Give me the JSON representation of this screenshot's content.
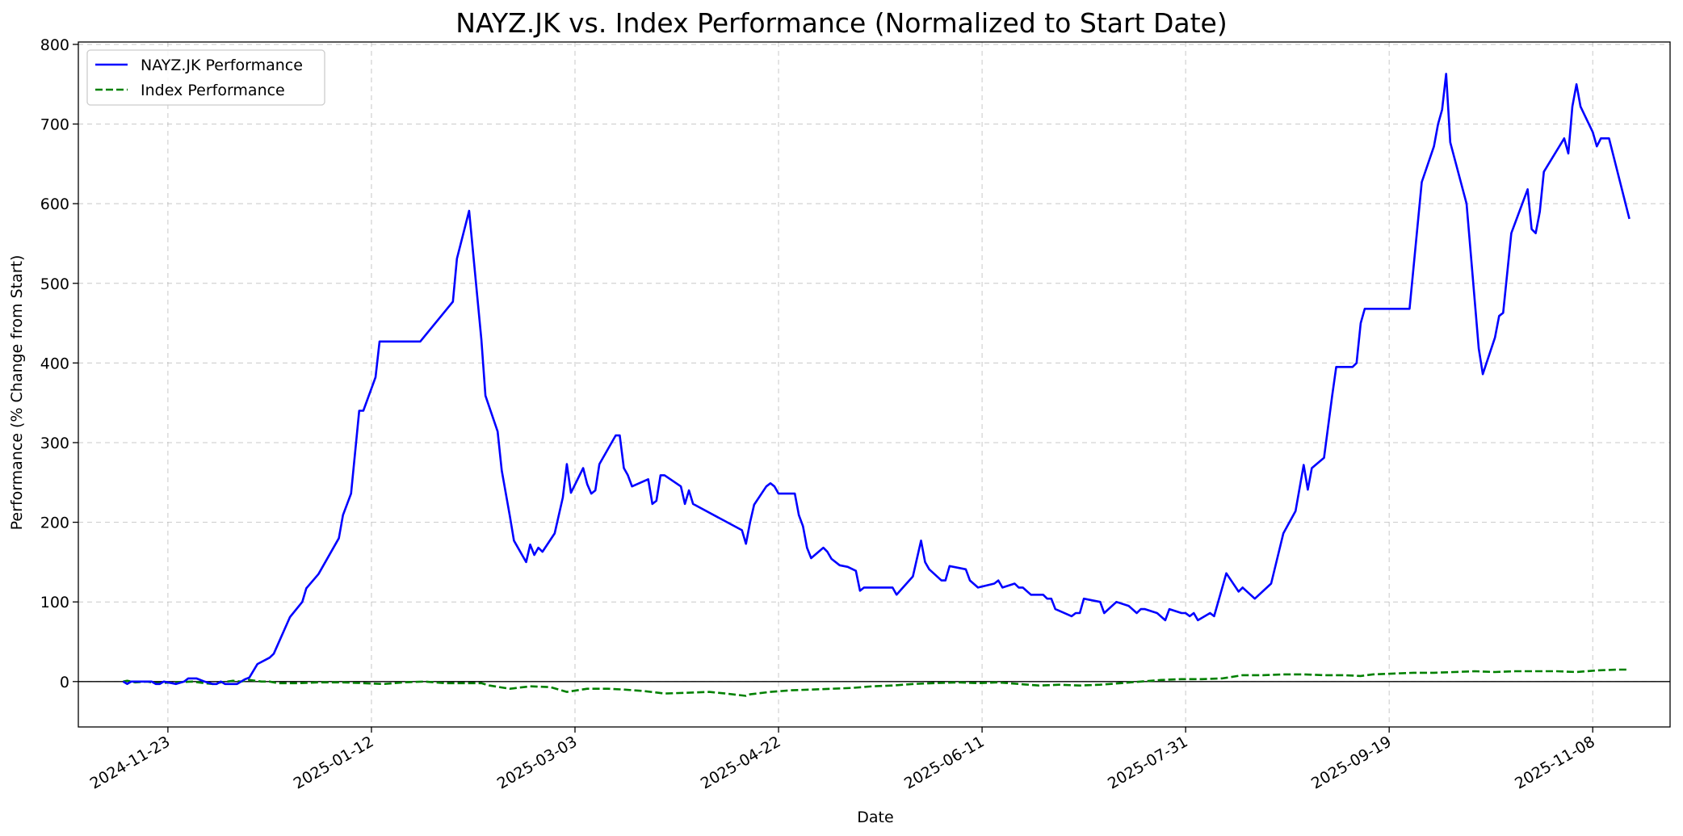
{
  "chart_data": {
    "type": "line",
    "title": "NAYZ.JK vs. Index Performance (Normalized to Start Date)",
    "xlabel": "Date",
    "ylabel": "Performance (% Change from Start)",
    "x_ticks": [
      "2024-11-23",
      "2025-01-12",
      "2025-03-03",
      "2025-04-22",
      "2025-06-11",
      "2025-07-31",
      "2025-09-19",
      "2025-11-08"
    ],
    "y_ticks": [
      0,
      100,
      200,
      300,
      400,
      500,
      600,
      700,
      800
    ],
    "ylim": [
      -57,
      803
    ],
    "xlim": [
      "2024-11-01",
      "2025-11-27"
    ],
    "grid": true,
    "zero_line": true,
    "legend": "top-left",
    "colors": {
      "nayz": "#0000ff",
      "index": "#008000",
      "zero": "#000000",
      "grid": "#b0b0b0"
    },
    "series": [
      {
        "name": "NAYZ.JK Performance",
        "style": "solid",
        "points": [
          [
            "2024-11-12",
            0
          ],
          [
            "2024-11-13",
            -3
          ],
          [
            "2024-11-14",
            0
          ],
          [
            "2024-11-15",
            0
          ],
          [
            "2024-11-18",
            0
          ],
          [
            "2024-11-19",
            0
          ],
          [
            "2024-11-20",
            -3
          ],
          [
            "2024-11-21",
            -3
          ],
          [
            "2024-11-22",
            0
          ],
          [
            "2024-11-25",
            -3
          ],
          [
            "2024-11-27",
            0
          ],
          [
            "2024-11-28",
            4
          ],
          [
            "2024-11-30",
            4
          ],
          [
            "2024-12-02",
            0
          ],
          [
            "2024-12-04",
            -3
          ],
          [
            "2024-12-05",
            -3
          ],
          [
            "2024-12-06",
            0
          ],
          [
            "2024-12-07",
            -3
          ],
          [
            "2024-12-10",
            -3
          ],
          [
            "2024-12-11",
            0
          ],
          [
            "2024-12-12",
            3
          ],
          [
            "2024-12-13",
            5
          ],
          [
            "2024-12-15",
            22
          ],
          [
            "2024-12-18",
            30
          ],
          [
            "2024-12-19",
            35
          ],
          [
            "2024-12-23",
            81
          ],
          [
            "2024-12-26",
            100
          ],
          [
            "2024-12-27",
            117
          ],
          [
            "2024-12-30",
            135
          ],
          [
            "2025-01-04",
            180
          ],
          [
            "2025-01-05",
            209
          ],
          [
            "2025-01-07",
            236
          ],
          [
            "2025-01-09",
            340
          ],
          [
            "2025-01-10",
            340
          ],
          [
            "2025-01-13",
            382
          ],
          [
            "2025-01-14",
            427
          ],
          [
            "2025-01-24",
            427
          ],
          [
            "2025-02-01",
            477
          ],
          [
            "2025-02-02",
            531
          ],
          [
            "2025-02-05",
            591
          ],
          [
            "2025-02-08",
            429
          ],
          [
            "2025-02-09",
            359
          ],
          [
            "2025-02-12",
            314
          ],
          [
            "2025-02-13",
            265
          ],
          [
            "2025-02-15",
            208
          ],
          [
            "2025-02-16",
            177
          ],
          [
            "2025-02-19",
            150
          ],
          [
            "2025-02-20",
            172
          ],
          [
            "2025-02-21",
            159
          ],
          [
            "2025-02-22",
            168
          ],
          [
            "2025-02-23",
            163
          ],
          [
            "2025-02-26",
            186
          ],
          [
            "2025-02-28",
            231
          ],
          [
            "2025-03-01",
            273
          ],
          [
            "2025-03-02",
            237
          ],
          [
            "2025-03-05",
            268
          ],
          [
            "2025-03-06",
            248
          ],
          [
            "2025-03-07",
            236
          ],
          [
            "2025-03-08",
            240
          ],
          [
            "2025-03-09",
            273
          ],
          [
            "2025-03-13",
            309
          ],
          [
            "2025-03-14",
            309
          ],
          [
            "2025-03-15",
            268
          ],
          [
            "2025-03-16",
            259
          ],
          [
            "2025-03-17",
            245
          ],
          [
            "2025-03-21",
            254
          ],
          [
            "2025-03-22",
            223
          ],
          [
            "2025-03-23",
            227
          ],
          [
            "2025-03-24",
            259
          ],
          [
            "2025-03-25",
            259
          ],
          [
            "2025-03-29",
            245
          ],
          [
            "2025-03-30",
            223
          ],
          [
            "2025-03-31",
            240
          ],
          [
            "2025-04-01",
            223
          ],
          [
            "2025-04-13",
            190
          ],
          [
            "2025-04-14",
            173
          ],
          [
            "2025-04-15",
            200
          ],
          [
            "2025-04-16",
            222
          ],
          [
            "2025-04-19",
            245
          ],
          [
            "2025-04-20",
            249
          ],
          [
            "2025-04-21",
            245
          ],
          [
            "2025-04-22",
            236
          ],
          [
            "2025-04-26",
            236
          ],
          [
            "2025-04-27",
            209
          ],
          [
            "2025-04-28",
            195
          ],
          [
            "2025-04-29",
            168
          ],
          [
            "2025-04-30",
            155
          ],
          [
            "2025-05-03",
            168
          ],
          [
            "2025-05-04",
            163
          ],
          [
            "2025-05-05",
            154
          ],
          [
            "2025-05-07",
            146
          ],
          [
            "2025-05-09",
            144
          ],
          [
            "2025-05-11",
            139
          ],
          [
            "2025-05-12",
            114
          ],
          [
            "2025-05-13",
            118
          ],
          [
            "2025-05-20",
            118
          ],
          [
            "2025-05-21",
            109
          ],
          [
            "2025-05-25",
            132
          ],
          [
            "2025-05-27",
            177
          ],
          [
            "2025-05-28",
            150
          ],
          [
            "2025-05-29",
            141
          ],
          [
            "2025-06-01",
            127
          ],
          [
            "2025-06-02",
            127
          ],
          [
            "2025-06-03",
            145
          ],
          [
            "2025-06-07",
            141
          ],
          [
            "2025-06-08",
            127
          ],
          [
            "2025-06-10",
            118
          ],
          [
            "2025-06-14",
            123
          ],
          [
            "2025-06-15",
            127
          ],
          [
            "2025-06-16",
            118
          ],
          [
            "2025-06-19",
            123
          ],
          [
            "2025-06-20",
            118
          ],
          [
            "2025-06-21",
            118
          ],
          [
            "2025-06-23",
            109
          ],
          [
            "2025-06-26",
            109
          ],
          [
            "2025-06-27",
            104
          ],
          [
            "2025-06-28",
            104
          ],
          [
            "2025-06-29",
            91
          ],
          [
            "2025-07-03",
            82
          ],
          [
            "2025-07-04",
            86
          ],
          [
            "2025-07-05",
            86
          ],
          [
            "2025-07-06",
            104
          ],
          [
            "2025-07-10",
            100
          ],
          [
            "2025-07-11",
            86
          ],
          [
            "2025-07-14",
            100
          ],
          [
            "2025-07-17",
            95
          ],
          [
            "2025-07-19",
            86
          ],
          [
            "2025-07-20",
            91
          ],
          [
            "2025-07-21",
            91
          ],
          [
            "2025-07-24",
            86
          ],
          [
            "2025-07-26",
            77
          ],
          [
            "2025-07-27",
            91
          ],
          [
            "2025-07-30",
            86
          ],
          [
            "2025-07-31",
            86
          ],
          [
            "2025-08-01",
            82
          ],
          [
            "2025-08-02",
            86
          ],
          [
            "2025-08-03",
            77
          ],
          [
            "2025-08-06",
            86
          ],
          [
            "2025-08-07",
            82
          ],
          [
            "2025-08-10",
            136
          ],
          [
            "2025-08-13",
            113
          ],
          [
            "2025-08-14",
            118
          ],
          [
            "2025-08-17",
            104
          ],
          [
            "2025-08-21",
            123
          ],
          [
            "2025-08-24",
            186
          ],
          [
            "2025-08-27",
            214
          ],
          [
            "2025-08-29",
            272
          ],
          [
            "2025-08-30",
            241
          ],
          [
            "2025-08-31",
            268
          ],
          [
            "2025-09-03",
            281
          ],
          [
            "2025-09-05",
            359
          ],
          [
            "2025-09-06",
            395
          ],
          [
            "2025-09-10",
            395
          ],
          [
            "2025-09-11",
            400
          ],
          [
            "2025-09-12",
            450
          ],
          [
            "2025-09-13",
            468
          ],
          [
            "2025-09-24",
            468
          ],
          [
            "2025-09-27",
            627
          ],
          [
            "2025-09-30",
            672
          ],
          [
            "2025-10-01",
            700
          ],
          [
            "2025-10-02",
            718
          ],
          [
            "2025-10-03",
            763
          ],
          [
            "2025-10-04",
            677
          ],
          [
            "2025-10-08",
            600
          ],
          [
            "2025-10-11",
            418
          ],
          [
            "2025-10-12",
            386
          ],
          [
            "2025-10-15",
            432
          ],
          [
            "2025-10-16",
            459
          ],
          [
            "2025-10-17",
            463
          ],
          [
            "2025-10-19",
            563
          ],
          [
            "2025-10-23",
            618
          ],
          [
            "2025-10-24",
            568
          ],
          [
            "2025-10-25",
            563
          ],
          [
            "2025-10-26",
            590
          ],
          [
            "2025-10-27",
            640
          ],
          [
            "2025-11-01",
            682
          ],
          [
            "2025-11-02",
            663
          ],
          [
            "2025-11-03",
            722
          ],
          [
            "2025-11-04",
            750
          ],
          [
            "2025-11-05",
            722
          ],
          [
            "2025-11-08",
            690
          ],
          [
            "2025-11-09",
            672
          ],
          [
            "2025-11-10",
            682
          ],
          [
            "2025-11-12",
            682
          ],
          [
            "2025-11-17",
            581
          ]
        ]
      },
      {
        "name": "Index Performance",
        "style": "dashed",
        "points": [
          [
            "2024-11-12",
            0
          ],
          [
            "2024-11-13",
            1
          ],
          [
            "2024-11-15",
            -1
          ],
          [
            "2024-11-18",
            0
          ],
          [
            "2024-11-20",
            -2
          ],
          [
            "2024-11-25",
            -1
          ],
          [
            "2024-11-29",
            0
          ],
          [
            "2024-12-02",
            -2
          ],
          [
            "2024-12-04",
            -3
          ],
          [
            "2024-12-06",
            -1
          ],
          [
            "2024-12-09",
            1
          ],
          [
            "2024-12-11",
            0
          ],
          [
            "2024-12-13",
            2
          ],
          [
            "2024-12-16",
            0
          ],
          [
            "2024-12-18",
            0
          ],
          [
            "2024-12-20",
            -2
          ],
          [
            "2024-12-25",
            -2
          ],
          [
            "2024-12-30",
            -1
          ],
          [
            "2025-01-05",
            -1
          ],
          [
            "2025-01-10",
            -2
          ],
          [
            "2025-01-15",
            -3
          ],
          [
            "2025-01-20",
            -1
          ],
          [
            "2025-01-25",
            0
          ],
          [
            "2025-01-30",
            -2
          ],
          [
            "2025-02-05",
            -2
          ],
          [
            "2025-02-08",
            -2
          ],
          [
            "2025-02-10",
            -5
          ],
          [
            "2025-02-15",
            -9
          ],
          [
            "2025-02-20",
            -6
          ],
          [
            "2025-02-25",
            -7
          ],
          [
            "2025-03-01",
            -13
          ],
          [
            "2025-03-06",
            -9
          ],
          [
            "2025-03-11",
            -9
          ],
          [
            "2025-03-15",
            -10
          ],
          [
            "2025-03-20",
            -12
          ],
          [
            "2025-03-25",
            -15
          ],
          [
            "2025-03-31",
            -14
          ],
          [
            "2025-04-05",
            -13
          ],
          [
            "2025-04-09",
            -15
          ],
          [
            "2025-04-14",
            -18
          ],
          [
            "2025-04-15",
            -16
          ],
          [
            "2025-04-20",
            -13
          ],
          [
            "2025-04-25",
            -11
          ],
          [
            "2025-04-30",
            -10
          ],
          [
            "2025-05-05",
            -9
          ],
          [
            "2025-05-10",
            -8
          ],
          [
            "2025-05-15",
            -6
          ],
          [
            "2025-05-20",
            -5
          ],
          [
            "2025-05-25",
            -3
          ],
          [
            "2025-05-30",
            -2
          ],
          [
            "2025-06-05",
            -1
          ],
          [
            "2025-06-10",
            -2
          ],
          [
            "2025-06-15",
            -1
          ],
          [
            "2025-06-20",
            -3
          ],
          [
            "2025-06-25",
            -5
          ],
          [
            "2025-06-30",
            -4
          ],
          [
            "2025-07-05",
            -5
          ],
          [
            "2025-07-10",
            -4
          ],
          [
            "2025-07-15",
            -2
          ],
          [
            "2025-07-20",
            0
          ],
          [
            "2025-07-25",
            2
          ],
          [
            "2025-07-30",
            3
          ],
          [
            "2025-08-04",
            3
          ],
          [
            "2025-08-09",
            4
          ],
          [
            "2025-08-14",
            8
          ],
          [
            "2025-08-19",
            8
          ],
          [
            "2025-08-24",
            9
          ],
          [
            "2025-08-29",
            9
          ],
          [
            "2025-09-03",
            8
          ],
          [
            "2025-09-08",
            8
          ],
          [
            "2025-09-12",
            7
          ],
          [
            "2025-09-15",
            9
          ],
          [
            "2025-09-20",
            10
          ],
          [
            "2025-09-25",
            11
          ],
          [
            "2025-09-30",
            11
          ],
          [
            "2025-10-05",
            12
          ],
          [
            "2025-10-10",
            13
          ],
          [
            "2025-10-15",
            12
          ],
          [
            "2025-10-20",
            13
          ],
          [
            "2025-10-25",
            13
          ],
          [
            "2025-10-30",
            13
          ],
          [
            "2025-11-04",
            12
          ],
          [
            "2025-11-09",
            14
          ],
          [
            "2025-11-14",
            15
          ],
          [
            "2025-11-17",
            15
          ]
        ]
      }
    ]
  }
}
